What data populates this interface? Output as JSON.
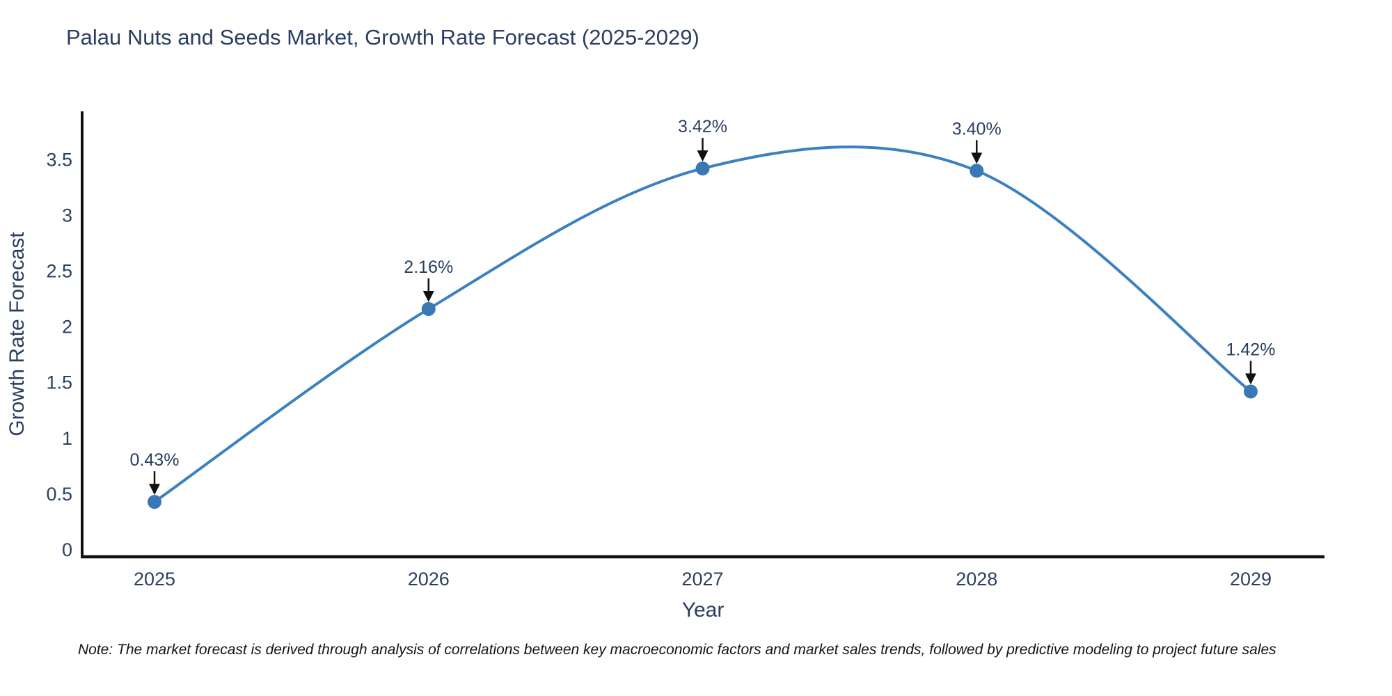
{
  "title": "Palau Nuts and Seeds Market, Growth Rate Forecast (2025-2029)",
  "note": "Note: The market forecast is derived through analysis of correlations between key macroeconomic factors and market sales trends, followed by predictive modeling to project future sales",
  "chart_data": {
    "type": "line",
    "title": "Palau Nuts and Seeds Market, Growth Rate Forecast (2025-2029)",
    "xlabel": "Year",
    "ylabel": "Growth Rate Forecast",
    "categories": [
      "2025",
      "2026",
      "2027",
      "2028",
      "2029"
    ],
    "series": [
      {
        "name": "Growth Rate Forecast",
        "values": [
          0.43,
          2.16,
          3.42,
          3.4,
          1.42
        ],
        "point_labels": [
          "0.43%",
          "2.16%",
          "3.42%",
          "3.40%",
          "1.42%"
        ]
      }
    ],
    "yticks": [
      0,
      0.5,
      1,
      1.5,
      2,
      2.5,
      3,
      3.5
    ],
    "ytick_labels": [
      "0",
      "0.5",
      "1",
      "1.5",
      "2",
      "2.5",
      "3",
      "3.5"
    ],
    "ylim": [
      0,
      4.0
    ],
    "line_shape": "spline",
    "grid": false,
    "legend": "none",
    "annotations": "value labels with down arrows above each point",
    "colors": {
      "line": "#3d80c0",
      "marker": "#3878b4",
      "axis": "#111111",
      "text": "#2a3f5f",
      "annotation_text": "#2a3f5f",
      "annotation_arrow": "#111111",
      "background": "#ffffff"
    }
  }
}
